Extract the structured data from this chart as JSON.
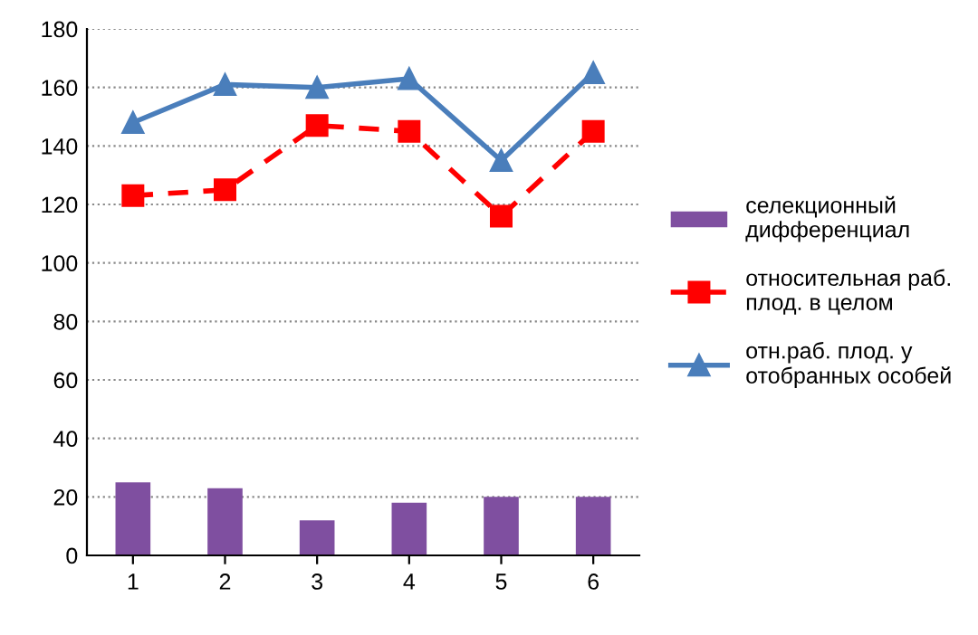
{
  "chart_data": {
    "type": "bar",
    "categories": [
      "1",
      "2",
      "3",
      "4",
      "5",
      "6"
    ],
    "series": [
      {
        "name": "селекционный\nдифференциал",
        "color": "#7f4fa0",
        "values": [
          25,
          23,
          12,
          18,
          20,
          20
        ]
      },
      {
        "name": "относительная раб.\nплод. в целом",
        "type": "line",
        "color": "#ff0000",
        "line_style": "dashed",
        "marker": "square",
        "values": [
          123,
          125,
          147,
          145,
          116,
          145
        ]
      },
      {
        "name": "отн.раб. плод. у\nотобранных особей",
        "type": "line",
        "color": "#4a7ebb",
        "line_style": "solid",
        "marker": "triangle",
        "values": [
          148,
          161,
          160,
          163,
          135,
          165
        ]
      }
    ],
    "ylim": [
      0,
      180
    ],
    "yticks": [
      0,
      20,
      40,
      60,
      80,
      100,
      120,
      140,
      160,
      180
    ],
    "grid": "y",
    "legend": "right"
  }
}
